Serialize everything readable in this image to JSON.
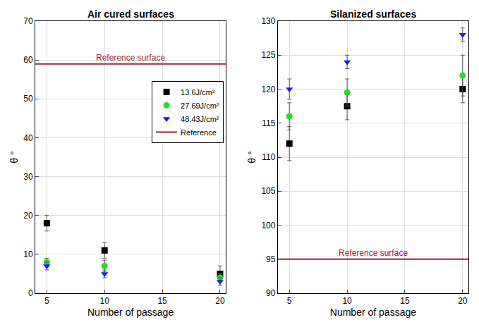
{
  "chart_data": [
    {
      "type": "scatter",
      "title": "Air cured surfaces",
      "x_label": "Number of passage",
      "y_label": "θ °",
      "x": [
        5,
        10,
        20
      ],
      "xlim": [
        4,
        20.5
      ],
      "xticks": [
        5,
        10,
        15,
        20
      ],
      "ylim": [
        0,
        70
      ],
      "yticks": [
        0,
        10,
        20,
        30,
        40,
        50,
        60,
        70
      ],
      "grid": true,
      "legend": "upper right",
      "series": [
        {
          "name": "13.6J/cm²",
          "color": "#000000",
          "marker": "square",
          "values": [
            18,
            11,
            5
          ],
          "errors": [
            2,
            2,
            2
          ]
        },
        {
          "name": "27.69J/cm²",
          "color": "#22dd22",
          "marker": "circle",
          "values": [
            8,
            7,
            4
          ],
          "errors": [
            1,
            1.5,
            1
          ]
        },
        {
          "name": "48.43J/cm²",
          "color": "#1a1aff",
          "marker": "triangle-down",
          "values": [
            7,
            5,
            3
          ],
          "errors": [
            1,
            1,
            1
          ]
        },
        {
          "name": "Reference",
          "type": "hline",
          "color": "#a3213a",
          "value": 59,
          "label": "Reference surface"
        }
      ]
    },
    {
      "type": "scatter",
      "title": "Silanized surfaces",
      "x_label": "Number of passage",
      "y_label": "θ °",
      "x": [
        5,
        10,
        20
      ],
      "xlim": [
        4,
        20.5
      ],
      "xticks": [
        5,
        10,
        15,
        20
      ],
      "ylim": [
        90,
        130
      ],
      "yticks": [
        90,
        95,
        100,
        105,
        110,
        115,
        120,
        125,
        130
      ],
      "grid": true,
      "series": [
        {
          "color": "#000000",
          "marker": "square",
          "values": [
            112,
            117.5,
            120
          ],
          "errors": [
            2.5,
            2,
            2
          ]
        },
        {
          "color": "#22dd22",
          "marker": "circle",
          "values": [
            116,
            119.5,
            122
          ],
          "errors": [
            2,
            2,
            3
          ]
        },
        {
          "color": "#1a1aff",
          "marker": "triangle-down",
          "values": [
            120,
            124,
            128
          ],
          "errors": [
            1.5,
            1,
            1
          ]
        },
        {
          "type": "hline",
          "color": "#a3213a",
          "value": 95,
          "label": "Reference surface"
        }
      ]
    }
  ]
}
